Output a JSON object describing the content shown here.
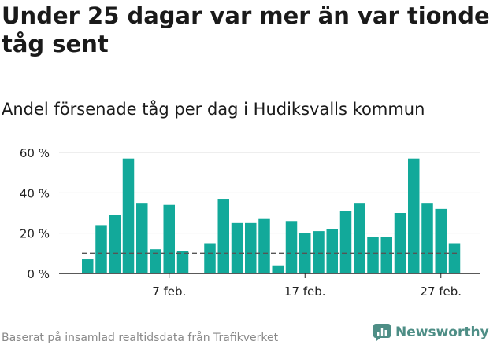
{
  "title": "Under 25 dagar var mer än var tionde tåg sent",
  "subtitle": "Andel försenade tåg per dag i Hudiksvalls kommun",
  "footer": "Baserat på insamlad realtidsdata från Trafikverket",
  "brand": "Newsworthy",
  "colors": {
    "bar": "#12a99a",
    "grid": "#dddddd",
    "axis": "#222222",
    "reference_line": "#555555",
    "brand": "#4e8e86"
  },
  "chart_data": {
    "type": "bar",
    "x_unit": "day",
    "x": [
      "1 feb.",
      "2 feb.",
      "3 feb.",
      "4 feb.",
      "5 feb.",
      "6 feb.",
      "7 feb.",
      "8 feb.",
      "9 feb.",
      "10 feb.",
      "11 feb.",
      "12 feb.",
      "13 feb.",
      "14 feb.",
      "15 feb.",
      "16 feb.",
      "17 feb.",
      "18 feb.",
      "19 feb.",
      "20 feb.",
      "21 feb.",
      "22 feb.",
      "23 feb.",
      "24 feb.",
      "25 feb.",
      "26 feb.",
      "27 feb.",
      "28 feb."
    ],
    "values": [
      7,
      24,
      29,
      57,
      35,
      12,
      34,
      11,
      null,
      15,
      37,
      25,
      25,
      27,
      4,
      26,
      20,
      21,
      22,
      31,
      35,
      18,
      18,
      30,
      57,
      35,
      32,
      15
    ],
    "x_ticks": [
      "7 feb.",
      "17 feb.",
      "27 feb."
    ],
    "y_ticks": [
      "0 %",
      "20 %",
      "40 %",
      "60 %"
    ],
    "y_tick_values": [
      0,
      20,
      40,
      60
    ],
    "ylim": [
      0,
      60
    ],
    "reference_line": 10,
    "grid": true,
    "xlabel": "",
    "ylabel": ""
  }
}
